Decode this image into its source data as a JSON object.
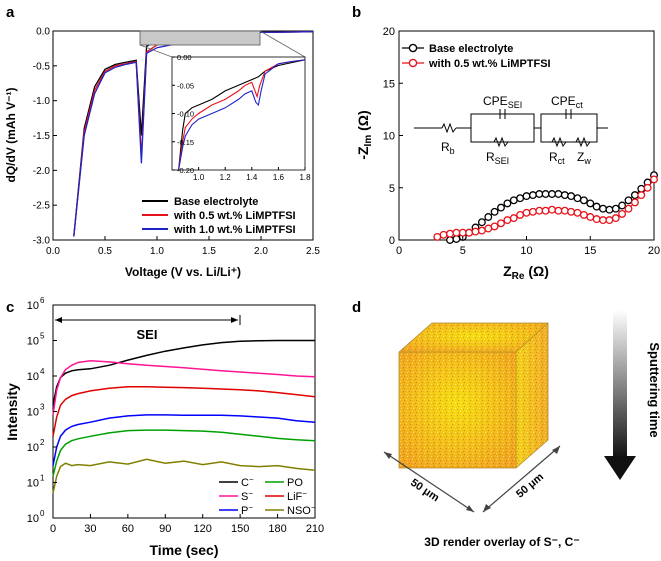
{
  "panel_labels": {
    "a": "a",
    "b": "b",
    "c": "c",
    "d": "d"
  },
  "colors": {
    "black": "#000000",
    "red": "#e8121a",
    "blue": "#1f24c9",
    "gray_inset": "#c8c8c8"
  },
  "chart_data": [
    {
      "id": "a",
      "type": "line",
      "title": "",
      "xlabel": "Voltage (V vs. Li/Li⁺)",
      "ylabel": "dQ/dV (mAh V⁻¹)",
      "xlim": [
        0.0,
        2.5
      ],
      "ylim": [
        -3.0,
        0.0
      ],
      "xticks": [
        "0.0",
        "0.5",
        "1.0",
        "1.5",
        "2.0",
        "2.5"
      ],
      "yticks": [
        "0.0",
        "-0.5",
        "-1.0",
        "-1.5",
        "-2.0",
        "-2.5",
        "-3.0"
      ],
      "legend_position": "bottom-right",
      "series": [
        {
          "name": "Base electrolyte",
          "color": "#000000",
          "x": [
            0.2,
            0.3,
            0.4,
            0.5,
            0.6,
            0.7,
            0.8,
            0.85,
            0.9,
            1.0,
            1.2,
            1.4,
            1.46,
            1.6,
            1.8,
            2.0,
            2.5
          ],
          "y": [
            -2.95,
            -1.4,
            -0.8,
            -0.55,
            -0.48,
            -0.45,
            -0.42,
            -1.5,
            -0.22,
            -0.14,
            -0.1,
            -0.08,
            -0.06,
            -0.04,
            -0.02,
            -0.02,
            -0.01
          ]
        },
        {
          "name": "with 0.5 wt.% LiMPTFSI",
          "color": "#e8121a",
          "x": [
            0.2,
            0.3,
            0.4,
            0.5,
            0.6,
            0.7,
            0.8,
            0.85,
            0.9,
            1.0,
            1.2,
            1.4,
            1.44,
            1.5,
            1.6,
            1.8,
            2.0,
            2.5
          ],
          "y": [
            -2.95,
            -1.45,
            -0.85,
            -0.58,
            -0.5,
            -0.47,
            -0.44,
            -1.8,
            -0.3,
            -0.2,
            -0.15,
            -0.1,
            -0.14,
            -0.06,
            -0.04,
            -0.02,
            -0.02,
            -0.01
          ]
        },
        {
          "name": "with 1.0 wt.% LiMPTFSI",
          "color": "#1f24c9",
          "x": [
            0.2,
            0.3,
            0.4,
            0.5,
            0.6,
            0.7,
            0.8,
            0.85,
            0.9,
            1.0,
            1.2,
            1.4,
            1.45,
            1.5,
            1.6,
            1.8,
            2.0,
            2.5
          ],
          "y": [
            -2.95,
            -1.5,
            -0.9,
            -0.6,
            -0.52,
            -0.48,
            -0.45,
            -1.9,
            -0.32,
            -0.24,
            -0.18,
            -0.14,
            -0.18,
            -0.07,
            -0.05,
            -0.03,
            -0.02,
            -0.01
          ]
        }
      ],
      "inset": {
        "xlim": [
          0.8,
          1.8
        ],
        "ylim": [
          -0.2,
          0.0
        ],
        "xticks": [
          "1.0",
          "1.2",
          "1.4",
          "1.6",
          "1.8"
        ],
        "yticks": [
          "0.00",
          "-0.05",
          "-0.10",
          "-0.15",
          "-0.20"
        ],
        "series": [
          {
            "name": "Base electrolyte",
            "color": "#000000",
            "x": [
              0.85,
              0.88,
              0.9,
              0.95,
              1.0,
              1.1,
              1.2,
              1.3,
              1.35,
              1.4,
              1.45,
              1.5,
              1.6,
              1.7,
              1.8
            ],
            "y": [
              -0.2,
              -0.13,
              -0.1,
              -0.09,
              -0.085,
              -0.075,
              -0.06,
              -0.05,
              -0.045,
              -0.04,
              -0.035,
              -0.025,
              -0.015,
              -0.01,
              -0.005
            ]
          },
          {
            "name": "with 0.5 wt.% LiMPTFSI",
            "color": "#e8121a",
            "x": [
              0.85,
              0.88,
              0.9,
              0.95,
              1.0,
              1.1,
              1.2,
              1.3,
              1.35,
              1.4,
              1.44,
              1.46,
              1.5,
              1.6,
              1.7,
              1.8
            ],
            "y": [
              -0.2,
              -0.15,
              -0.125,
              -0.11,
              -0.1,
              -0.085,
              -0.075,
              -0.06,
              -0.05,
              -0.045,
              -0.07,
              -0.05,
              -0.025,
              -0.012,
              -0.008,
              -0.005
            ]
          },
          {
            "name": "with 1.0 wt.% LiMPTFSI",
            "color": "#1f24c9",
            "x": [
              0.85,
              0.88,
              0.9,
              0.95,
              1.0,
              1.1,
              1.2,
              1.3,
              1.35,
              1.4,
              1.43,
              1.45,
              1.47,
              1.5,
              1.6,
              1.7,
              1.8
            ],
            "y": [
              -0.2,
              -0.16,
              -0.14,
              -0.12,
              -0.11,
              -0.1,
              -0.09,
              -0.075,
              -0.065,
              -0.06,
              -0.08,
              -0.085,
              -0.06,
              -0.03,
              -0.012,
              -0.008,
              -0.005
            ]
          }
        ]
      }
    },
    {
      "id": "b",
      "type": "scatter",
      "xlabel": "Z",
      "xlabel_sub": "Re",
      "xlabel_unit": " (Ω)",
      "ylabel": "-Z",
      "ylabel_sub": "Im",
      "ylabel_unit": " (Ω)",
      "xlim": [
        0,
        20
      ],
      "ylim": [
        0,
        20
      ],
      "xticks": [
        "0",
        "5",
        "10",
        "15",
        "20"
      ],
      "yticks": [
        "0",
        "5",
        "10",
        "15",
        "20"
      ],
      "legend_position": "top-left",
      "series": [
        {
          "name": "Base electrolyte",
          "color": "#000000",
          "x": [
            4.0,
            4.5,
            5.0,
            5.5,
            6.0,
            6.5,
            7.0,
            7.5,
            8.0,
            8.5,
            9.0,
            9.5,
            10.0,
            10.5,
            11.0,
            11.5,
            12.0,
            12.5,
            13.0,
            13.5,
            14.0,
            14.5,
            15.0,
            15.5,
            16.0,
            16.5,
            17.0,
            17.5,
            18.0,
            18.5,
            19.0,
            19.5,
            20.0
          ],
          "y": [
            0.0,
            0.1,
            0.3,
            0.7,
            1.2,
            1.7,
            2.2,
            2.7,
            3.1,
            3.5,
            3.8,
            4.0,
            4.2,
            4.3,
            4.4,
            4.4,
            4.4,
            4.4,
            4.3,
            4.2,
            4.0,
            3.8,
            3.5,
            3.2,
            3.0,
            2.9,
            3.0,
            3.3,
            3.8,
            4.3,
            4.9,
            5.5,
            6.2
          ]
        },
        {
          "name": "with 0.5 wt.% LiMPTFSI",
          "color": "#e8121a",
          "x": [
            3.0,
            3.5,
            4.0,
            4.5,
            5.0,
            5.5,
            6.0,
            6.5,
            7.0,
            7.5,
            8.0,
            8.5,
            9.0,
            9.5,
            10.0,
            10.5,
            11.0,
            11.5,
            12.0,
            12.5,
            13.0,
            13.5,
            14.0,
            14.5,
            15.0,
            15.5,
            16.0,
            16.5,
            17.0,
            17.5,
            18.0,
            18.5,
            19.0,
            19.5,
            20.0
          ],
          "y": [
            0.3,
            0.5,
            0.6,
            0.7,
            0.7,
            0.7,
            0.8,
            0.9,
            1.1,
            1.3,
            1.6,
            1.9,
            2.1,
            2.4,
            2.6,
            2.7,
            2.8,
            2.8,
            2.9,
            2.8,
            2.8,
            2.7,
            2.6,
            2.4,
            2.2,
            2.0,
            1.9,
            1.9,
            2.1,
            2.5,
            3.0,
            3.6,
            4.3,
            5.0,
            5.8
          ]
        }
      ],
      "circuit": {
        "Rb": "R",
        "Rb_sub": "b",
        "CPE_SEI": "CPE",
        "CPE_SEI_sub": "SEI",
        "R_SEI": "R",
        "R_SEI_sub": "SEI",
        "CPE_ct": "CPE",
        "CPE_ct_sub": "ct",
        "R_ct": "R",
        "R_ct_sub": "ct",
        "Zw": "Z",
        "Zw_sub": "w"
      }
    },
    {
      "id": "c",
      "type": "line",
      "xlabel": "Time (sec)",
      "ylabel": "Intensity",
      "xlim": [
        0,
        210
      ],
      "ylim_log10": [
        0,
        6
      ],
      "xticks": [
        "0",
        "30",
        "60",
        "90",
        "120",
        "150",
        "180",
        "210"
      ],
      "yticks_base": "10",
      "yticks_exp": [
        "0",
        "1",
        "2",
        "3",
        "4",
        "5",
        "6"
      ],
      "annotation": {
        "label": "SEI",
        "x_start": 0,
        "x_end": 150
      },
      "legend_position": "bottom-right",
      "series": [
        {
          "name": "C",
          "sup": "−",
          "color": "#000000",
          "x": [
            0,
            3,
            6,
            10,
            15,
            20,
            30,
            45,
            60,
            75,
            90,
            105,
            120,
            135,
            150,
            165,
            180,
            195,
            210
          ],
          "y": [
            1500,
            5000,
            9000,
            12000,
            14000,
            15000,
            16000,
            20000,
            28000,
            38000,
            50000,
            62000,
            75000,
            87000,
            95000,
            98000,
            100000,
            100000,
            100000
          ]
        },
        {
          "name": "S",
          "sup": "−",
          "color": "#ff1493",
          "x": [
            0,
            3,
            6,
            10,
            15,
            20,
            30,
            45,
            60,
            75,
            90,
            105,
            120,
            135,
            150,
            165,
            180,
            195,
            210
          ],
          "y": [
            800,
            4000,
            9000,
            15000,
            20000,
            24000,
            27000,
            25000,
            22000,
            20000,
            18500,
            17000,
            15500,
            14000,
            13000,
            12000,
            11000,
            10000,
            9500
          ]
        },
        {
          "name": "P",
          "sup": "−",
          "color": "#0000ff",
          "x": [
            0,
            3,
            6,
            10,
            15,
            20,
            30,
            45,
            60,
            75,
            90,
            105,
            120,
            135,
            150,
            165,
            180,
            195,
            210
          ],
          "y": [
            30,
            100,
            200,
            300,
            380,
            430,
            500,
            650,
            750,
            800,
            800,
            780,
            780,
            780,
            750,
            700,
            650,
            550,
            500
          ]
        },
        {
          "name": "PO",
          "sup": "",
          "color": "#00a000",
          "x": [
            0,
            3,
            6,
            10,
            15,
            20,
            30,
            45,
            60,
            75,
            90,
            105,
            120,
            135,
            150,
            165,
            180,
            195,
            210
          ],
          "y": [
            15,
            40,
            80,
            120,
            150,
            170,
            200,
            250,
            290,
            300,
            300,
            290,
            280,
            260,
            230,
            200,
            175,
            160,
            150
          ]
        },
        {
          "name": "LiF",
          "sup": "−",
          "color": "#e00000",
          "x": [
            0,
            3,
            6,
            10,
            15,
            20,
            30,
            45,
            60,
            75,
            90,
            105,
            120,
            135,
            150,
            165,
            180,
            195,
            210
          ],
          "y": [
            200,
            700,
            1500,
            2200,
            2800,
            3200,
            3800,
            4500,
            5000,
            5000,
            4800,
            4700,
            4500,
            4300,
            4100,
            3800,
            3400,
            3000,
            2600
          ]
        },
        {
          "name": "NSO",
          "sup": "−",
          "color": "#808000",
          "x": [
            0,
            3,
            6,
            10,
            15,
            20,
            30,
            45,
            60,
            75,
            90,
            105,
            120,
            135,
            150,
            165,
            180,
            195,
            210
          ],
          "y": [
            5,
            15,
            28,
            35,
            30,
            32,
            30,
            38,
            33,
            45,
            35,
            40,
            32,
            38,
            30,
            28,
            30,
            25,
            22
          ]
        }
      ]
    }
  ],
  "panel_d": {
    "time_label": "Sputtering time",
    "dim_front": "50 μm",
    "dim_right": "50 μm",
    "caption": "3D render overlay of S⁻, C⁻"
  }
}
